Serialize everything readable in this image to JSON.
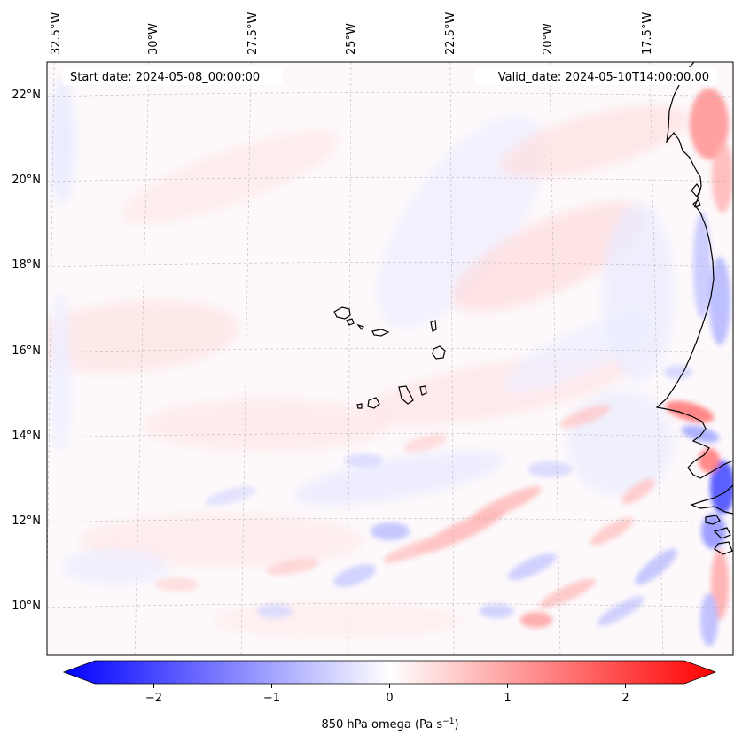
{
  "map": {
    "top_axis_labels": [
      "32.5°W",
      "30°W",
      "27.5°W",
      "25°W",
      "22.5°W",
      "20°W",
      "17.5°W"
    ],
    "left_axis_labels": [
      "22°N",
      "20°N",
      "18°N",
      "16°N",
      "14°N",
      "12°N",
      "10°N"
    ],
    "start_date": "Start date: 2024-05-08_00:00:00",
    "valid_date": "Valid_date: 2024-05-10T14:00:00.00",
    "region": "Cabo Verde Islands and West African coast",
    "field_colors": {
      "positive": "#ff0000",
      "negative": "#0000ff",
      "neutral": "#ffffff"
    }
  },
  "colorbar": {
    "ticks": [
      -2,
      -1,
      0,
      1,
      2
    ],
    "tick_labels": [
      "−2",
      "−1",
      "0",
      "1",
      "2"
    ],
    "range": [
      -2.6,
      2.6
    ],
    "label_main": "850 hPa omega (Pa s",
    "label_sup": "−1",
    "label_end": ")",
    "colors": {
      "min": "#0000ff",
      "mid": "#ffffff",
      "max": "#ff0000"
    }
  }
}
